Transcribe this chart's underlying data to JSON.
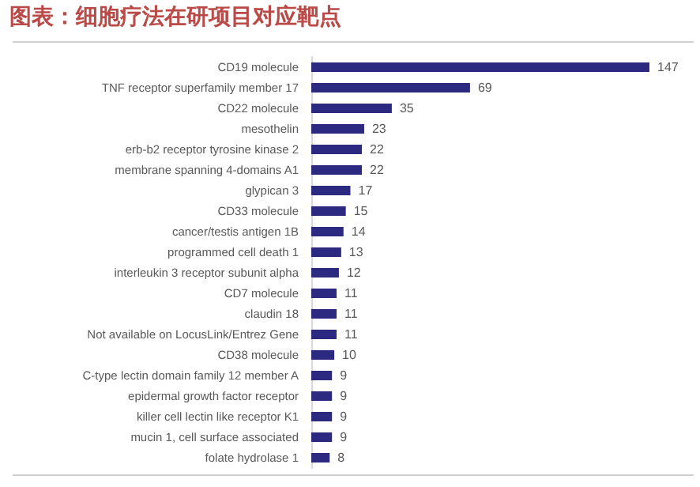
{
  "chart_data": {
    "type": "bar",
    "orientation": "horizontal",
    "title": "图表：细胞疗法在研项目对应靶点",
    "categories": [
      "CD19 molecule",
      "TNF receptor superfamily member 17",
      "CD22 molecule",
      "mesothelin",
      "erb-b2 receptor tyrosine kinase 2",
      "membrane spanning 4-domains A1",
      "glypican 3",
      "CD33 molecule",
      "cancer/testis antigen 1B",
      "programmed cell death 1",
      "interleukin 3 receptor subunit alpha",
      "CD7 molecule",
      "claudin 18",
      "Not available on LocusLink/Entrez Gene",
      "CD38 molecule",
      "C-type lectin domain family 12 member A",
      "epidermal growth factor receptor",
      "killer cell lectin like receptor K1",
      "mucin 1, cell surface associated",
      "folate hydrolase 1"
    ],
    "values": [
      147,
      69,
      35,
      23,
      22,
      22,
      17,
      15,
      14,
      13,
      12,
      11,
      11,
      11,
      10,
      9,
      9,
      9,
      9,
      8
    ],
    "color": "#2b2a80",
    "data_labels": true
  }
}
